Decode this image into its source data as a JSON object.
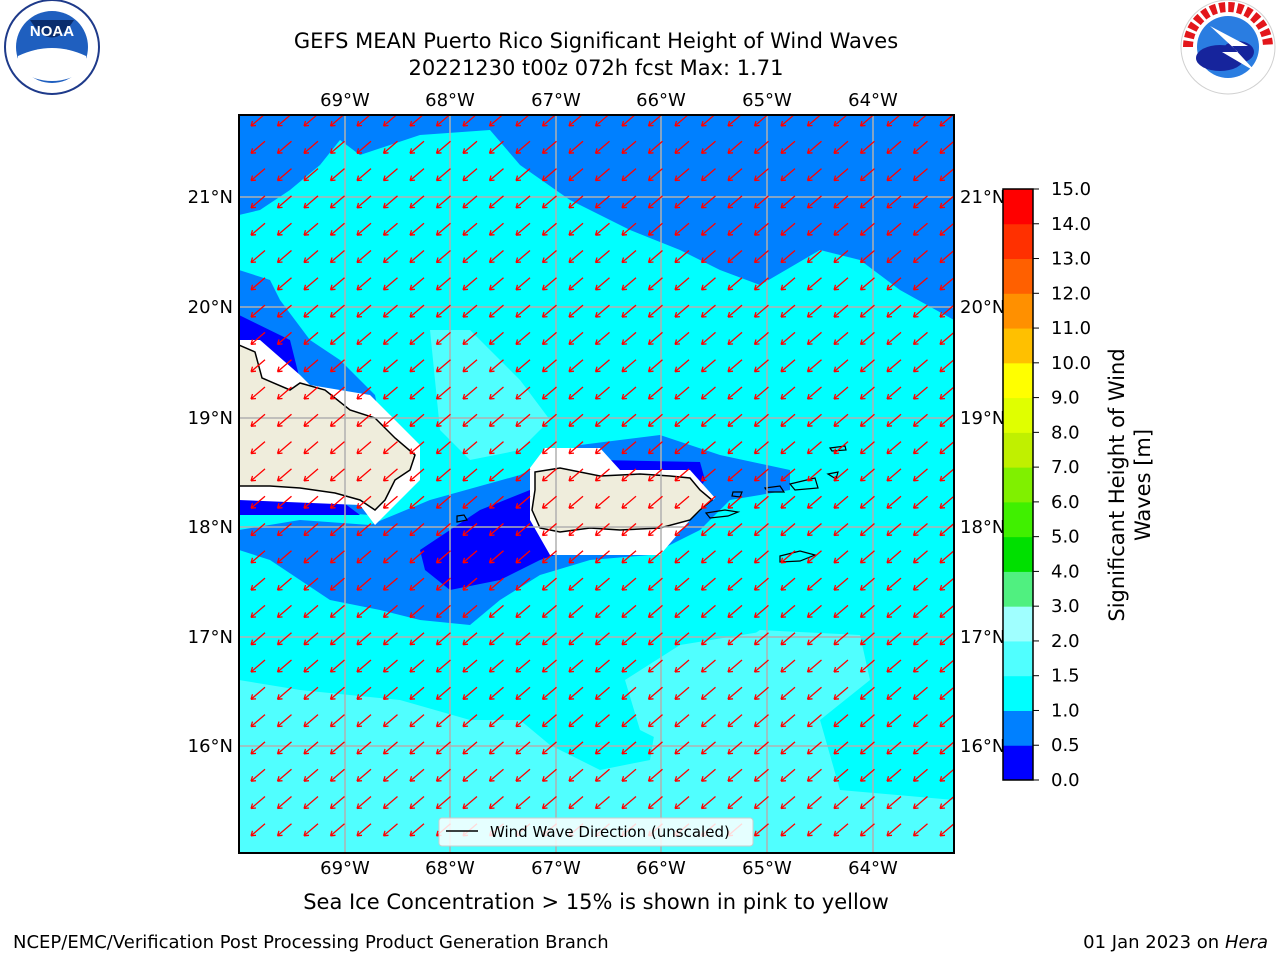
{
  "title_line1": "GEFS MEAN Puerto Rico Significant Height of Wind Waves",
  "title_line2": "20221230 t00z 072h fcst   Max: 1.71",
  "note": "Sea Ice Concentration > 15% is shown in pink to yellow",
  "footer_left": "NCEP/EMC/Verification Post Processing Product Generation Branch",
  "footer_right_date": "01 Jan 2023 on ",
  "footer_right_machine": "Hera",
  "logos": {
    "left": {
      "name": "noaa-logo",
      "text": "NOAA",
      "ring_text": "NATIONAL OCEANIC AND ATMOSPHERIC ADMINISTRATION · U.S. DEPARTMENT OF COMMERCE"
    },
    "right": {
      "name": "nws-logo",
      "ring_text": "NATIONAL WEATHER SERVICE"
    }
  },
  "map": {
    "lon_labels": [
      "69°W",
      "68°W",
      "67°W",
      "66°W",
      "65°W",
      "64°W"
    ],
    "lat_labels": [
      "21°N",
      "20°N",
      "19°N",
      "18°N",
      "17°N",
      "16°N"
    ],
    "legend": "Wind Wave Direction (unscaled)",
    "land_color": "#efeddc",
    "wave_arrow_color": "#ff0000"
  },
  "colorbar": {
    "label": "Significant Height of Wind Waves [m]",
    "ticks": [
      "0.0",
      "0.5",
      "1.0",
      "1.5",
      "2.0",
      "3.0",
      "4.0",
      "5.0",
      "6.0",
      "7.0",
      "8.0",
      "9.0",
      "10.0",
      "11.0",
      "12.0",
      "13.0",
      "14.0",
      "15.0"
    ],
    "colors": [
      "#0000ff",
      "#0080ff",
      "#00ffff",
      "#50ffff",
      "#a0ffff",
      "#50f080",
      "#00e000",
      "#40f000",
      "#80f000",
      "#c0f000",
      "#e0ff00",
      "#ffff00",
      "#ffc000",
      "#ff9000",
      "#ff6000",
      "#ff3000",
      "#ff0000"
    ]
  }
}
